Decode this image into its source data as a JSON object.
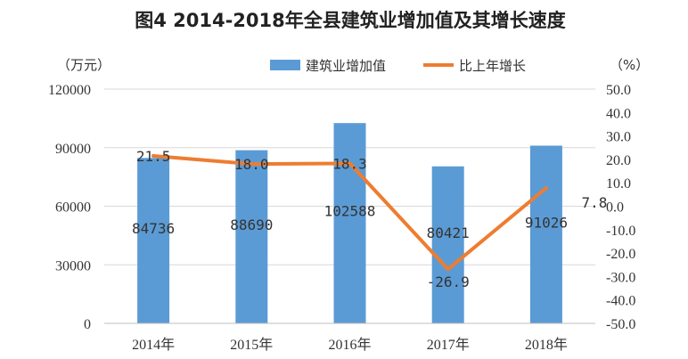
{
  "chart_data": {
    "type": "bar",
    "title": "图4 2014-2018年全县建筑业增加值及其增长速度",
    "categories": [
      "2014年",
      "2015年",
      "2016年",
      "2017年",
      "2018年"
    ],
    "y_left": {
      "unit_label": "（万元）",
      "range": [
        0,
        120000
      ],
      "ticks": [
        0,
        30000,
        60000,
        90000,
        120000
      ],
      "tick_labels": [
        "0",
        "30000",
        "60000",
        "90000",
        "120000"
      ]
    },
    "y_right": {
      "unit_label": "（%）",
      "range": [
        -50,
        50
      ],
      "ticks": [
        -50,
        -40,
        -30,
        -20,
        -10,
        0,
        10,
        20,
        30,
        40,
        50
      ],
      "tick_labels": [
        "-50.0",
        "-40.0",
        "-30.0",
        "-20.0",
        "-10.0",
        "0.0",
        "10.0",
        "20.0",
        "30.0",
        "40.0",
        "50.0"
      ]
    },
    "series": [
      {
        "name": "建筑业增加值",
        "kind": "bar",
        "axis": "left",
        "color": "#5b9bd5",
        "values": [
          84736,
          88690,
          102588,
          80421,
          91026
        ],
        "labels": [
          "84736",
          "88690",
          "102588",
          "80421",
          "91026"
        ]
      },
      {
        "name": "比上年增长",
        "kind": "line",
        "axis": "right",
        "color": "#ed7d31",
        "values": [
          21.5,
          18.0,
          18.3,
          -26.9,
          7.8
        ],
        "labels": [
          "21.5",
          "18.0",
          "18.3",
          "-26.9",
          "7.8"
        ]
      }
    ],
    "legend_position": "top",
    "grid": true
  }
}
